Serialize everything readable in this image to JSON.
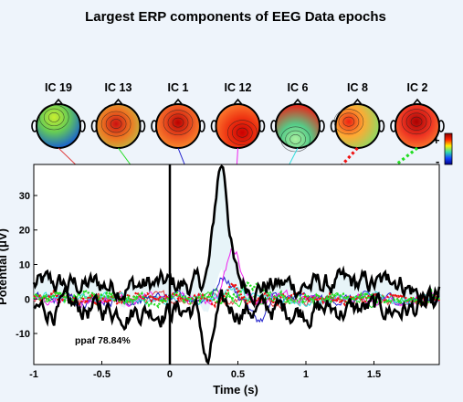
{
  "chart_data": {
    "type": "line",
    "title": "Largest ERP components of EEG Data epochs",
    "xlabel": "Time (s)",
    "ylabel": "Potential (μV)",
    "xlim": [
      -1,
      1.98
    ],
    "ylim": [
      -19,
      39
    ],
    "xticks": [
      {
        "value": -1,
        "label": "-1"
      },
      {
        "value": -0.5,
        "label": "-0.5"
      },
      {
        "value": 0,
        "label": "0"
      },
      {
        "value": 0.5,
        "label": "0.5"
      },
      {
        "value": 1,
        "label": "1"
      },
      {
        "value": 1.5,
        "label": "1.5"
      }
    ],
    "yticks": [
      {
        "value": -10,
        "label": "-10"
      },
      {
        "value": 0,
        "label": "0"
      },
      {
        "value": 10,
        "label": "10"
      },
      {
        "value": 20,
        "label": "20"
      },
      {
        "value": 30,
        "label": "30"
      }
    ],
    "grid": false,
    "annotation": "ppaf 78.84%",
    "stimulus_onset": 0,
    "colorbar": {
      "plus": "+",
      "minus": "-"
    },
    "components": [
      {
        "label": "IC 19",
        "color": "#e04040",
        "style": "solid",
        "peak": {
          "x": 0.28,
          "y": 2
        }
      },
      {
        "label": "IC 13",
        "color": "#22dd22",
        "style": "solid",
        "peak": {
          "x": 0.36,
          "y": 4
        }
      },
      {
        "label": "IC 1",
        "color": "#2020cc",
        "style": "solid",
        "peak": {
          "x": 0.4,
          "y": 10
        }
      },
      {
        "label": "IC 12",
        "color": "#ee22ee",
        "style": "solid",
        "peak": {
          "x": 0.47,
          "y": 24
        }
      },
      {
        "label": "IC 6",
        "color": "#33dddd",
        "style": "solid",
        "peak": {
          "x": 0.45,
          "y": 6
        }
      },
      {
        "label": "IC 8",
        "color": "#ee1111",
        "style": "dotted",
        "peak": {
          "x": 0.48,
          "y": 5
        }
      },
      {
        "label": "IC 2",
        "color": "#22dd22",
        "style": "dotted",
        "peak": {
          "x": 0.6,
          "y": 6
        }
      }
    ],
    "envelope_peak": {
      "x": 0.38,
      "y": 35.5
    },
    "envelope_trough": {
      "x": 0.28,
      "y": -16
    }
  }
}
